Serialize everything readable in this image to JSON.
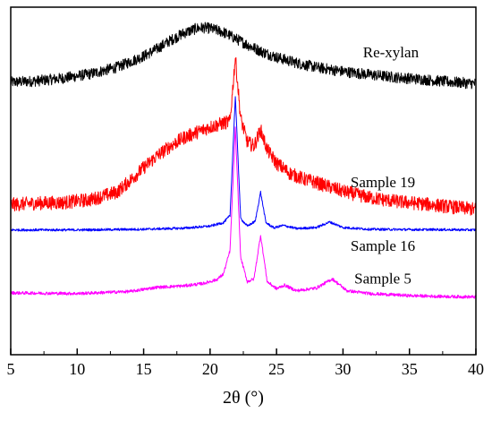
{
  "chart_data": {
    "type": "line",
    "title": "",
    "xlabel": "2θ (°)",
    "ylabel": "",
    "xlim": [
      5,
      40
    ],
    "ylim": [
      0,
      1
    ],
    "xticks": [
      5,
      10,
      15,
      20,
      25,
      30,
      35,
      40
    ],
    "grid": false,
    "legend": "none",
    "series": [
      {
        "name": "Re-xylan",
        "color": "#000000",
        "x": [
          5,
          7,
          9,
          11,
          13,
          15,
          16,
          17,
          18,
          19,
          19.5,
          20,
          21,
          22,
          23,
          24,
          25,
          26,
          27,
          28,
          30,
          32,
          34,
          36,
          38,
          40
        ],
        "y": [
          0.784,
          0.788,
          0.796,
          0.808,
          0.827,
          0.859,
          0.88,
          0.904,
          0.925,
          0.939,
          0.941,
          0.939,
          0.928,
          0.908,
          0.888,
          0.87,
          0.856,
          0.845,
          0.835,
          0.827,
          0.815,
          0.806,
          0.798,
          0.792,
          0.785,
          0.78
        ]
      },
      {
        "name": "Sample 19",
        "color": "#ff0000",
        "x": [
          5,
          7,
          9,
          11,
          13,
          14,
          15,
          16,
          17,
          18,
          19,
          20,
          21,
          21.5,
          21.9,
          22.3,
          22.8,
          23.3,
          23.8,
          24.3,
          25,
          26,
          27,
          28,
          30,
          32,
          34,
          36,
          38,
          40
        ],
        "y": [
          0.432,
          0.436,
          0.438,
          0.446,
          0.468,
          0.502,
          0.538,
          0.572,
          0.6,
          0.624,
          0.64,
          0.655,
          0.666,
          0.671,
          0.857,
          0.68,
          0.612,
          0.6,
          0.647,
          0.59,
          0.551,
          0.522,
          0.506,
          0.495,
          0.47,
          0.452,
          0.441,
          0.434,
          0.426,
          0.418
        ]
      },
      {
        "name": "Sample 16",
        "color": "#0000ff",
        "x": [
          5,
          10,
          15,
          18,
          20,
          21,
          21.5,
          21.9,
          22.3,
          22.8,
          23.4,
          23.8,
          24.2,
          24.8,
          25.5,
          26.5,
          28,
          29,
          30,
          32,
          35,
          37,
          40
        ],
        "y": [
          0.359,
          0.359,
          0.361,
          0.364,
          0.37,
          0.38,
          0.4,
          0.744,
          0.392,
          0.37,
          0.384,
          0.468,
          0.38,
          0.365,
          0.372,
          0.363,
          0.366,
          0.382,
          0.366,
          0.361,
          0.36,
          0.36,
          0.359
        ]
      },
      {
        "name": "Sample 5",
        "color": "#ff00ff",
        "x": [
          5,
          10,
          14,
          16,
          18,
          19.5,
          20.5,
          21,
          21.5,
          21.9,
          22.3,
          22.8,
          23.3,
          23.8,
          24.3,
          25,
          25.6,
          26.5,
          28,
          29.2,
          30.3,
          32,
          35,
          37,
          40
        ],
        "y": [
          0.178,
          0.176,
          0.182,
          0.194,
          0.198,
          0.205,
          0.216,
          0.232,
          0.3,
          0.653,
          0.28,
          0.21,
          0.218,
          0.344,
          0.21,
          0.19,
          0.2,
          0.184,
          0.192,
          0.218,
          0.184,
          0.176,
          0.17,
          0.168,
          0.166
        ]
      }
    ]
  }
}
